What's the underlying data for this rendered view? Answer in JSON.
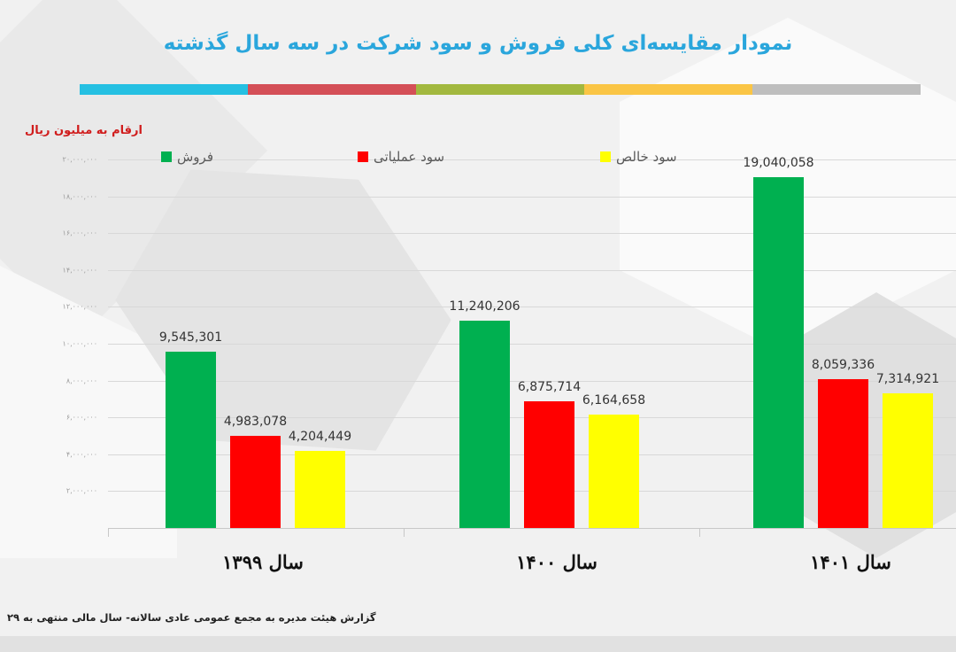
{
  "header": {
    "title": "نمودار مقایسه‌ای کلی فروش و سود شرکت در سه سال گذشته",
    "stripe_colors": [
      "#25c0e2",
      "#d44f57",
      "#a2b83f",
      "#fac545",
      "#bebebe"
    ],
    "unit_label": "ارقام به میلیون ریال"
  },
  "footer": {
    "text": "گزارش هیئت مدیره به مجمع عمومی عادی سالانه- سال مالی منتهی به ۲۹"
  },
  "chart_data": {
    "type": "bar",
    "title": "نمودار مقایسه‌ای کلی فروش و سود شرکت در سه سال گذشته",
    "xlabel": "",
    "ylabel": "ارقام به میلیون ریال",
    "ylim": [
      0,
      20000000
    ],
    "grid": true,
    "legend_position": "top",
    "y_ticks": [
      {
        "value": 20000000,
        "label": "۲۰,۰۰۰,۰۰۰"
      },
      {
        "value": 18000000,
        "label": "۱۸,۰۰۰,۰۰۰"
      },
      {
        "value": 16000000,
        "label": "۱۶,۰۰۰,۰۰۰"
      },
      {
        "value": 14000000,
        "label": "۱۴,۰۰۰,۰۰۰"
      },
      {
        "value": 12000000,
        "label": "۱۲,۰۰۰,۰۰۰"
      },
      {
        "value": 10000000,
        "label": "۱۰,۰۰۰,۰۰۰"
      },
      {
        "value": 8000000,
        "label": "۸,۰۰۰,۰۰۰"
      },
      {
        "value": 6000000,
        "label": "۶,۰۰۰,۰۰۰"
      },
      {
        "value": 4000000,
        "label": "۴,۰۰۰,۰۰۰"
      },
      {
        "value": 2000000,
        "label": "۲,۰۰۰,۰۰۰"
      }
    ],
    "categories": [
      "سال ۱۳۹۹",
      "سال ۱۴۰۰",
      "سال ۱۴۰۱"
    ],
    "series": [
      {
        "name": "فروش",
        "color": "#00b050",
        "values": [
          9545301,
          11240206,
          19040058
        ],
        "labels": [
          "9,545,301",
          "11,240,206",
          "19,040,058"
        ]
      },
      {
        "name": "سود عملیاتی",
        "color": "#ff0000",
        "values": [
          4983078,
          6875714,
          8059336
        ],
        "labels": [
          "4,983,078",
          "6,875,714",
          "8,059,336"
        ]
      },
      {
        "name": "سود خالص",
        "color": "#ffff00",
        "values": [
          4204449,
          6164658,
          7314921
        ],
        "labels": [
          "4,204,449",
          "6,164,658",
          "7,314,921"
        ]
      }
    ]
  }
}
